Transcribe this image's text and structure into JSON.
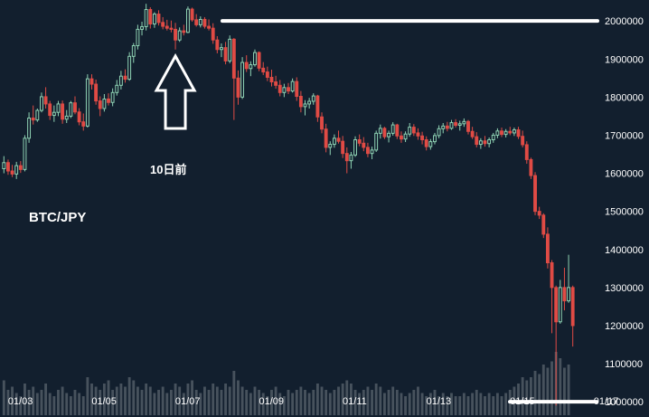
{
  "chart_data": {
    "type": "candlestick",
    "title": "BTC/JPY",
    "annotation_label": "10日前",
    "colors": {
      "up": "#8fd3b4",
      "down": "#e04b45",
      "volume": "#5a646e",
      "background": "#121f2e",
      "axis_text": "#ffffff",
      "marker": "#ffffff"
    },
    "ylim": [
      960000,
      2055000
    ],
    "y_ticks": [
      1000000,
      1100000,
      1200000,
      1300000,
      1400000,
      1500000,
      1600000,
      1700000,
      1800000,
      1900000,
      2000000
    ],
    "x_ticks": [
      "01/03",
      "01/05",
      "01/07",
      "01/09",
      "01/11",
      "01/13",
      "01/15",
      "01/17"
    ],
    "x_ticks_candle_index": [
      4,
      24,
      44,
      64,
      84,
      104,
      124,
      144
    ],
    "candles": [
      [
        1612000,
        1645000,
        1600000,
        1628000
      ],
      [
        1628000,
        1636000,
        1596000,
        1606000
      ],
      [
        1606000,
        1622000,
        1590000,
        1598000
      ],
      [
        1598000,
        1630000,
        1585000,
        1620000
      ],
      [
        1620000,
        1632000,
        1601000,
        1610000
      ],
      [
        1610000,
        1700000,
        1605000,
        1692000
      ],
      [
        1692000,
        1760000,
        1680000,
        1745000
      ],
      [
        1745000,
        1778000,
        1728000,
        1740000
      ],
      [
        1740000,
        1770000,
        1735000,
        1765000
      ],
      [
        1765000,
        1812000,
        1760000,
        1801000
      ],
      [
        1801000,
        1826000,
        1770000,
        1782000
      ],
      [
        1782000,
        1790000,
        1740000,
        1752000
      ],
      [
        1752000,
        1778000,
        1735000,
        1760000
      ],
      [
        1760000,
        1790000,
        1750000,
        1782000
      ],
      [
        1782000,
        1791000,
        1730000,
        1742000
      ],
      [
        1742000,
        1766000,
        1732000,
        1750000
      ],
      [
        1750000,
        1790000,
        1745000,
        1785000
      ],
      [
        1785000,
        1802000,
        1755000,
        1761000
      ],
      [
        1761000,
        1771000,
        1726000,
        1735000
      ],
      [
        1735000,
        1757000,
        1712000,
        1724000
      ],
      [
        1724000,
        1860000,
        1720000,
        1848000
      ],
      [
        1848000,
        1860000,
        1820000,
        1834000
      ],
      [
        1834000,
        1846000,
        1780000,
        1790000
      ],
      [
        1790000,
        1802000,
        1750000,
        1770000
      ],
      [
        1770000,
        1808000,
        1762000,
        1795000
      ],
      [
        1795000,
        1810000,
        1778000,
        1786000
      ],
      [
        1786000,
        1823000,
        1776000,
        1812000
      ],
      [
        1812000,
        1845000,
        1804000,
        1831000
      ],
      [
        1831000,
        1869000,
        1820000,
        1855000
      ],
      [
        1855000,
        1873000,
        1838000,
        1847000
      ],
      [
        1847000,
        1918000,
        1843000,
        1907000
      ],
      [
        1907000,
        1942000,
        1890000,
        1935000
      ],
      [
        1935000,
        1990000,
        1925000,
        1978000
      ],
      [
        1978000,
        1998000,
        1962000,
        1985000
      ],
      [
        1985000,
        2045000,
        1975000,
        2030000
      ],
      [
        2030000,
        2036000,
        1980000,
        1992000
      ],
      [
        1992000,
        2023000,
        1982000,
        2018000
      ],
      [
        2018000,
        2028000,
        1988000,
        1996000
      ],
      [
        1996000,
        2010000,
        1978000,
        1986000
      ],
      [
        1986000,
        2003000,
        1975000,
        1981000
      ],
      [
        1981000,
        2001000,
        1970000,
        1978000
      ],
      [
        1978000,
        1995000,
        1925000,
        1950000
      ],
      [
        1950000,
        1983000,
        1945000,
        1974000
      ],
      [
        1974000,
        1990000,
        1962000,
        1970000
      ],
      [
        1970000,
        2038000,
        1968000,
        2031000
      ],
      [
        2031000,
        2035000,
        1998000,
        2003000
      ],
      [
        2003000,
        2018000,
        1985000,
        1990000
      ],
      [
        1990000,
        2012000,
        1983000,
        2004000
      ],
      [
        2004000,
        2010000,
        1980000,
        1986000
      ],
      [
        1986000,
        2004000,
        1975000,
        1981000
      ],
      [
        1981000,
        1994000,
        1940000,
        1950000
      ],
      [
        1950000,
        1960000,
        1915000,
        1925000
      ],
      [
        1925000,
        1941000,
        1905000,
        1930000
      ],
      [
        1930000,
        1945000,
        1886000,
        1895000
      ],
      [
        1895000,
        1962000,
        1889000,
        1952000
      ],
      [
        1952000,
        1955000,
        1740000,
        1850000
      ],
      [
        1850000,
        1870000,
        1780000,
        1800000
      ],
      [
        1800000,
        1905000,
        1795000,
        1891000
      ],
      [
        1891000,
        1910000,
        1866000,
        1875000
      ],
      [
        1875000,
        1894000,
        1855000,
        1885000
      ],
      [
        1885000,
        1925000,
        1880000,
        1917000
      ],
      [
        1917000,
        1920000,
        1868000,
        1876000
      ],
      [
        1876000,
        1892000,
        1858000,
        1866000
      ],
      [
        1866000,
        1880000,
        1842000,
        1852000
      ],
      [
        1852000,
        1872000,
        1828000,
        1840000
      ],
      [
        1840000,
        1856000,
        1822000,
        1831000
      ],
      [
        1831000,
        1845000,
        1802000,
        1812000
      ],
      [
        1812000,
        1835000,
        1800000,
        1825000
      ],
      [
        1825000,
        1837000,
        1808000,
        1816000
      ],
      [
        1816000,
        1849000,
        1812000,
        1841000
      ],
      [
        1841000,
        1852000,
        1790000,
        1802000
      ],
      [
        1802000,
        1816000,
        1760000,
        1775000
      ],
      [
        1775000,
        1792000,
        1752000,
        1782000
      ],
      [
        1782000,
        1798000,
        1770000,
        1789000
      ],
      [
        1789000,
        1810000,
        1780000,
        1803000
      ],
      [
        1803000,
        1806000,
        1735000,
        1748000
      ],
      [
        1748000,
        1760000,
        1705000,
        1716000
      ],
      [
        1716000,
        1730000,
        1655000,
        1668000
      ],
      [
        1668000,
        1684000,
        1648000,
        1676000
      ],
      [
        1676000,
        1702000,
        1667000,
        1692000
      ],
      [
        1692000,
        1712000,
        1678000,
        1684000
      ],
      [
        1684000,
        1698000,
        1640000,
        1652000
      ],
      [
        1652000,
        1668000,
        1600000,
        1633000
      ],
      [
        1633000,
        1656000,
        1612000,
        1648000
      ],
      [
        1648000,
        1697000,
        1643000,
        1688000
      ],
      [
        1688000,
        1702000,
        1671000,
        1679000
      ],
      [
        1679000,
        1695000,
        1658000,
        1668000
      ],
      [
        1668000,
        1680000,
        1642000,
        1652000
      ],
      [
        1652000,
        1670000,
        1637000,
        1661000
      ],
      [
        1661000,
        1712000,
        1656000,
        1705000
      ],
      [
        1705000,
        1728000,
        1691000,
        1718000
      ],
      [
        1718000,
        1722000,
        1690000,
        1696000
      ],
      [
        1696000,
        1712000,
        1681000,
        1705000
      ],
      [
        1705000,
        1734000,
        1699000,
        1727000
      ],
      [
        1727000,
        1730000,
        1690000,
        1698000
      ],
      [
        1698000,
        1710000,
        1680000,
        1690000
      ],
      [
        1690000,
        1710000,
        1682000,
        1703000
      ],
      [
        1703000,
        1732000,
        1696000,
        1721000
      ],
      [
        1721000,
        1729000,
        1698000,
        1706000
      ],
      [
        1706000,
        1718000,
        1688000,
        1698000
      ],
      [
        1698000,
        1709000,
        1676000,
        1688000
      ],
      [
        1688000,
        1697000,
        1660000,
        1670000
      ],
      [
        1670000,
        1690000,
        1662000,
        1683000
      ],
      [
        1683000,
        1706000,
        1676000,
        1699000
      ],
      [
        1699000,
        1726000,
        1692000,
        1717000
      ],
      [
        1717000,
        1732000,
        1705000,
        1724000
      ],
      [
        1724000,
        1735000,
        1710000,
        1718000
      ],
      [
        1718000,
        1740000,
        1714000,
        1733000
      ],
      [
        1733000,
        1742000,
        1720000,
        1726000
      ],
      [
        1726000,
        1738000,
        1712000,
        1730000
      ],
      [
        1730000,
        1744000,
        1722000,
        1736000
      ],
      [
        1736000,
        1740000,
        1702000,
        1710000
      ],
      [
        1710000,
        1722000,
        1690000,
        1696000
      ],
      [
        1696000,
        1708000,
        1668000,
        1676000
      ],
      [
        1676000,
        1692000,
        1664000,
        1685000
      ],
      [
        1685000,
        1698000,
        1670000,
        1678000
      ],
      [
        1678000,
        1694000,
        1668000,
        1688000
      ],
      [
        1688000,
        1706000,
        1680000,
        1700000
      ],
      [
        1700000,
        1718000,
        1692000,
        1711000
      ],
      [
        1711000,
        1720000,
        1695000,
        1702000
      ],
      [
        1702000,
        1716000,
        1694000,
        1710000
      ],
      [
        1710000,
        1722000,
        1700000,
        1706000
      ],
      [
        1706000,
        1720000,
        1698000,
        1714000
      ],
      [
        1714000,
        1722000,
        1690000,
        1697000
      ],
      [
        1697000,
        1712000,
        1668000,
        1675000
      ],
      [
        1675000,
        1684000,
        1625000,
        1636000
      ],
      [
        1636000,
        1641000,
        1585000,
        1594000
      ],
      [
        1594000,
        1603000,
        1490000,
        1500000
      ],
      [
        1500000,
        1512000,
        1480000,
        1490000
      ],
      [
        1490000,
        1495000,
        1430000,
        1440000
      ],
      [
        1440000,
        1458000,
        1350000,
        1365000
      ],
      [
        1365000,
        1372000,
        1180000,
        1300000
      ],
      [
        1300000,
        1305000,
        990000,
        1210000
      ],
      [
        1210000,
        1320000,
        1205000,
        1300000
      ],
      [
        1300000,
        1352000,
        1240000,
        1265000
      ],
      [
        1265000,
        1386000,
        1260000,
        1300000
      ],
      [
        1300000,
        1305000,
        1145000,
        1200000
      ]
    ],
    "volumes": [
      0.55,
      0.4,
      0.45,
      0.35,
      0.3,
      0.5,
      0.4,
      0.45,
      0.35,
      0.4,
      0.5,
      0.35,
      0.3,
      0.4,
      0.45,
      0.35,
      0.3,
      0.4,
      0.35,
      0.3,
      0.6,
      0.5,
      0.45,
      0.4,
      0.5,
      0.55,
      0.4,
      0.45,
      0.5,
      0.45,
      0.6,
      0.55,
      0.45,
      0.4,
      0.5,
      0.45,
      0.35,
      0.4,
      0.45,
      0.35,
      0.4,
      0.5,
      0.45,
      0.35,
      0.5,
      0.55,
      0.4,
      0.35,
      0.45,
      0.4,
      0.5,
      0.45,
      0.4,
      0.5,
      0.45,
      0.7,
      0.55,
      0.45,
      0.4,
      0.35,
      0.45,
      0.4,
      0.35,
      0.3,
      0.4,
      0.45,
      0.35,
      0.3,
      0.4,
      0.35,
      0.4,
      0.45,
      0.4,
      0.35,
      0.4,
      0.5,
      0.45,
      0.4,
      0.35,
      0.4,
      0.45,
      0.5,
      0.55,
      0.5,
      0.4,
      0.35,
      0.4,
      0.45,
      0.4,
      0.5,
      0.45,
      0.35,
      0.4,
      0.45,
      0.4,
      0.35,
      0.3,
      0.35,
      0.4,
      0.45,
      0.35,
      0.3,
      0.35,
      0.4,
      0.3,
      0.35,
      0.3,
      0.35,
      0.3,
      0.3,
      0.35,
      0.3,
      0.35,
      0.4,
      0.35,
      0.3,
      0.35,
      0.3,
      0.35,
      0.3,
      0.35,
      0.4,
      0.45,
      0.5,
      0.6,
      0.55,
      0.6,
      0.7,
      0.65,
      0.8,
      0.75,
      0.85,
      1.0,
      0.9,
      0.75,
      0.8
    ],
    "markers": {
      "resistance_level": 2000000,
      "support_level": 1000000,
      "arrow_candle_index": 41
    }
  }
}
